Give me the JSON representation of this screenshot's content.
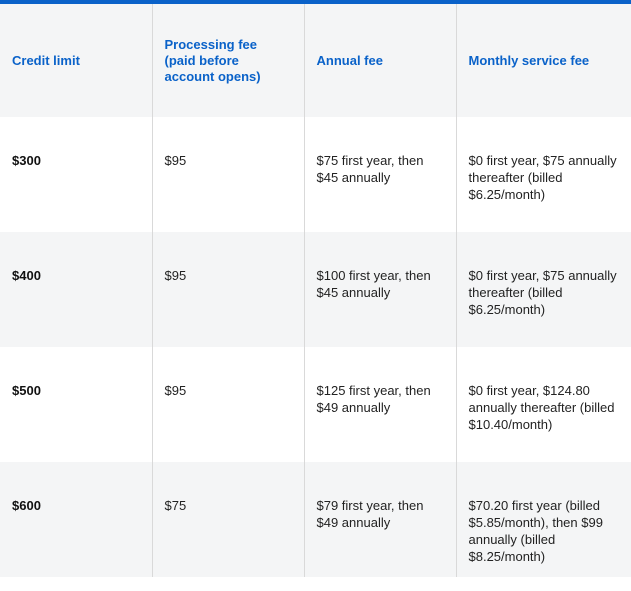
{
  "table": {
    "headers": [
      "Credit limit",
      "Processing fee (paid before account opens)",
      "Annual fee",
      "Monthly service fee"
    ],
    "rows": [
      {
        "credit_limit": "$300",
        "processing_fee": "$95",
        "annual_fee": "$75 first year, then $45 annually",
        "monthly_service_fee": "$0 first year, $75 annually thereafter (billed $6.25/month)"
      },
      {
        "credit_limit": "$400",
        "processing_fee": "$95",
        "annual_fee": "$100 first year, then $45 annually",
        "monthly_service_fee": "$0 first year, $75 annually thereafter (billed $6.25/month)"
      },
      {
        "credit_limit": "$500",
        "processing_fee": "$95",
        "annual_fee": "$125 first year, then $49 annually",
        "monthly_service_fee": "$0 first year, $124.80 annually thereafter (billed $10.40/month)"
      },
      {
        "credit_limit": "$600",
        "processing_fee": "$75",
        "annual_fee": "$79 first year, then $49 annually",
        "monthly_service_fee": "$70.20 first year (billed $5.85/month), then $99 annually (billed $8.25/month)"
      }
    ]
  },
  "colors": {
    "accent": "#0a62c9",
    "header_background": "#f4f5f6",
    "alt_row_background": "#f4f5f6"
  }
}
